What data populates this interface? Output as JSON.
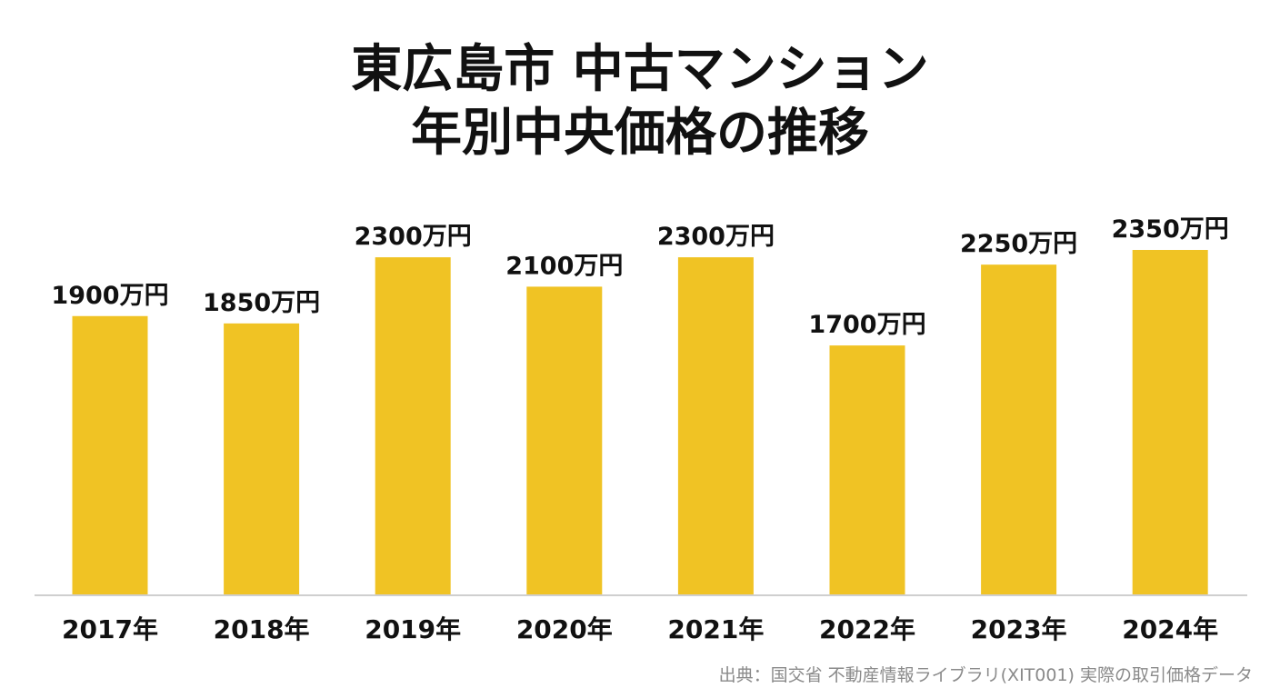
{
  "chart_data": {
    "type": "bar",
    "title_line1": "東広島市 中古マンション",
    "title_line2": "年別中央価格の推移",
    "categories": [
      "2017年",
      "2018年",
      "2019年",
      "2020年",
      "2021年",
      "2022年",
      "2023年",
      "2024年"
    ],
    "values": [
      1900,
      1850,
      2300,
      2100,
      2300,
      1700,
      2250,
      2350
    ],
    "value_labels": [
      "1900万円",
      "1850万円",
      "2300万円",
      "2100万円",
      "2300万円",
      "1700万円",
      "2250万円",
      "2350万円"
    ],
    "unit": "万円",
    "ylim": [
      0,
      2350
    ],
    "grid": false,
    "bar_color": "#F0C324",
    "axis_color": "#cfcfcf"
  },
  "source": "出典：国交省 不動産情報ライブラリ(XIT001) 実際の取引価格データ"
}
